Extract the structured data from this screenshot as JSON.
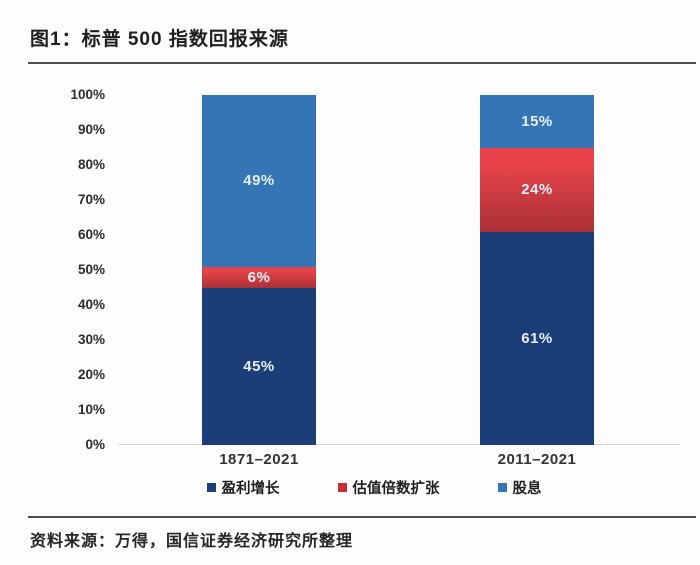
{
  "page": {
    "title": "图1：标普 500 指数回报来源",
    "source": "资料来源：万得，国信证券经济研究所整理"
  },
  "chart_data": {
    "type": "bar",
    "stacked": true,
    "title": "图1：标普 500 指数回报来源",
    "categories": [
      "1871–2021",
      "2011–2021"
    ],
    "series": [
      {
        "name": "盈利增长",
        "color": "#1b3d78",
        "values": [
          45,
          61
        ],
        "value_labels": [
          "45%",
          "61%"
        ]
      },
      {
        "name": "估值倍数扩张",
        "color": "#c72e34",
        "gradient": [
          "#e8434a",
          "#a93136"
        ],
        "values": [
          6,
          24
        ],
        "value_labels": [
          "6%",
          "24%"
        ]
      },
      {
        "name": "股息",
        "color": "#3475b5",
        "values": [
          49,
          15
        ],
        "value_labels": [
          "49%",
          "15%"
        ]
      }
    ],
    "y_ticks": [
      "0%",
      "10%",
      "20%",
      "30%",
      "40%",
      "50%",
      "60%",
      "70%",
      "80%",
      "90%",
      "100%"
    ],
    "ylim": [
      0,
      100
    ],
    "xlabel": "",
    "ylabel": "",
    "grid": false,
    "legend_position": "bottom",
    "value_label_color": "#e7f0fa"
  }
}
